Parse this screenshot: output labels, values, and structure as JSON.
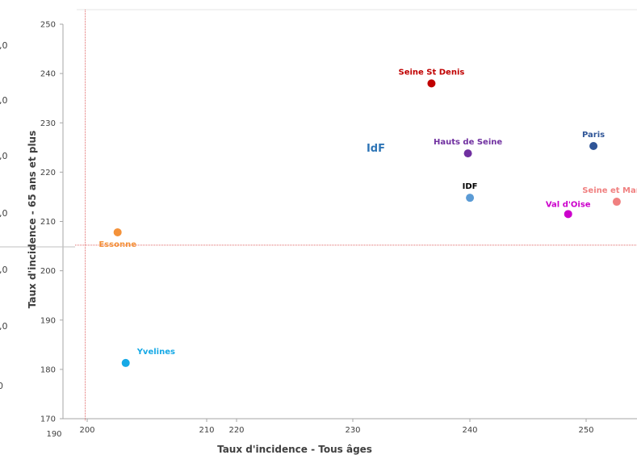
{
  "chart_data": {
    "type": "scatter",
    "xlabel": "Taux d'incidence - Tous âges",
    "ylabel": "Taux d'incidence - 65 ans et plus",
    "xlim": [
      198.5,
      254
    ],
    "ylim": [
      170,
      250
    ],
    "x_ticks": [
      "200",
      "210",
      "220",
      "230",
      "240",
      "250"
    ],
    "x_extra_tick": "190",
    "y_ticks": [
      "170",
      "180",
      "190",
      "200",
      "210",
      "220",
      "230",
      "240",
      "250"
    ],
    "ghost_left_labels": [
      ",0",
      ",0",
      ",0",
      ",0",
      ",0",
      ",0",
      ",0"
    ],
    "ghost_bottom_left": "0",
    "annotation": {
      "text": "IdF",
      "x": 228.2,
      "y": 224.8,
      "color": "#2e75b6"
    },
    "ref_lines": {
      "x": 199.5,
      "y": 205.2,
      "color": "#e06666"
    },
    "points": [
      {
        "label": "Seine St Denis",
        "x": 233.7,
        "y": 238.0,
        "color": "#c00000"
      },
      {
        "label": "Hauts de Seine",
        "x": 237.3,
        "y": 223.8,
        "color": "#7030a0"
      },
      {
        "label": "Paris",
        "x": 249.7,
        "y": 225.3,
        "color": "#2f5597"
      },
      {
        "label": "IDF",
        "x": 237.5,
        "y": 214.8,
        "color": "#5b9bd5",
        "label_color": "#000000"
      },
      {
        "label": "Seine et Marne",
        "x": 252.0,
        "y": 214.0,
        "color": "#f08080"
      },
      {
        "label": "Val d'Oise",
        "x": 247.2,
        "y": 211.5,
        "color": "#cc00cc"
      },
      {
        "label": "Essonne",
        "x": 202.7,
        "y": 207.8,
        "color": "#f4923a"
      },
      {
        "label": "Yvelines",
        "x": 203.5,
        "y": 181.3,
        "color": "#16a9e6"
      }
    ]
  }
}
